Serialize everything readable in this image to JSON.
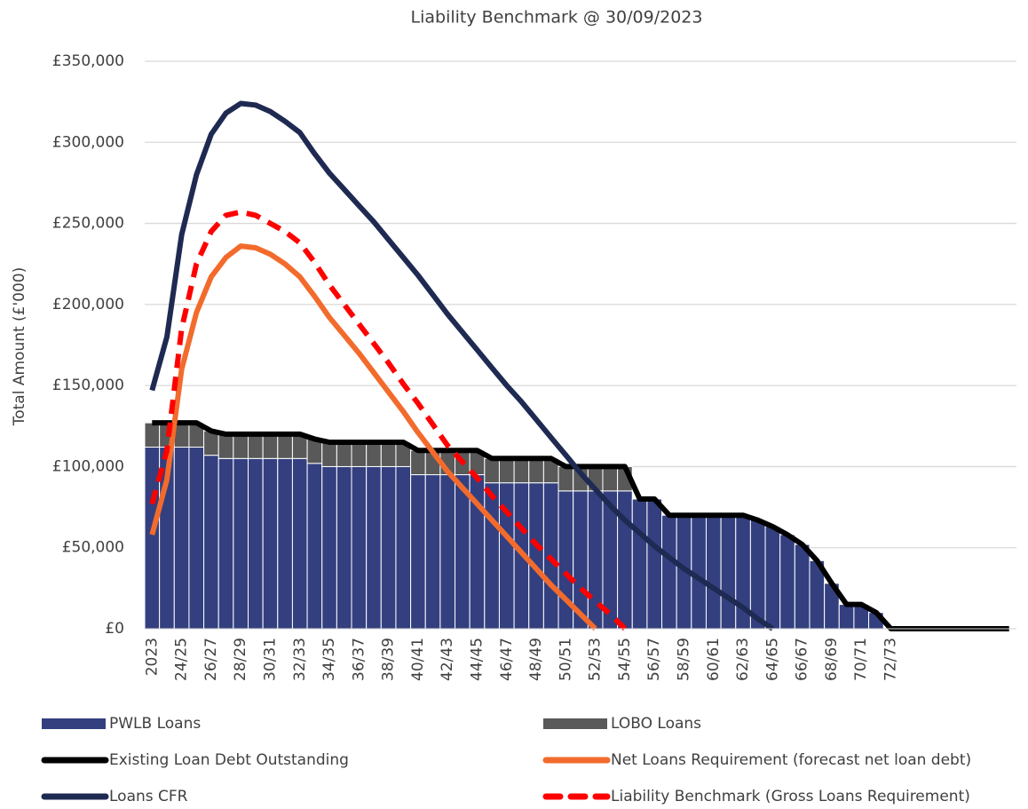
{
  "chart_data": {
    "type": "bar",
    "title": "Liability Benchmark @ 30/09/2023",
    "y_label": "Total Amount (£'000)",
    "categories": [
      "2023",
      null,
      "24/25",
      null,
      "26/27",
      null,
      "28/29",
      null,
      "30/31",
      null,
      "32/33",
      null,
      "34/35",
      null,
      "36/37",
      null,
      "38/39",
      null,
      "40/41",
      null,
      "42/43",
      null,
      "44/45",
      null,
      "46/47",
      null,
      "48/49",
      null,
      "50/51",
      null,
      "52/53",
      null,
      "54/55",
      null,
      "56/57",
      null,
      "58/59",
      null,
      "60/61",
      null,
      "62/63",
      null,
      "64/65",
      null,
      "66/67",
      null,
      "68/69",
      null,
      "70/71",
      null,
      "72/73",
      null,
      null,
      null,
      null,
      null,
      null,
      null,
      null
    ],
    "ylim": [
      0,
      350000
    ],
    "yticks": [
      {
        "value": 0,
        "label": "£0"
      },
      {
        "value": 50000,
        "label": "£50,000"
      },
      {
        "value": 100000,
        "label": "£100,000"
      },
      {
        "value": 150000,
        "label": "£150,000"
      },
      {
        "value": 200000,
        "label": "£200,000"
      },
      {
        "value": 250000,
        "label": "£250,000"
      },
      {
        "value": 300000,
        "label": "£300,000"
      },
      {
        "value": 350000,
        "label": "£350,000"
      }
    ],
    "grid": true,
    "series": [
      {
        "name": "PWLB Loans",
        "type": "bar",
        "color": "#333f7f",
        "values": [
          112000,
          112000,
          112000,
          112000,
          107000,
          105000,
          105000,
          105000,
          105000,
          105000,
          105000,
          102000,
          100000,
          100000,
          100000,
          100000,
          100000,
          100000,
          95000,
          95000,
          95000,
          95000,
          95000,
          90000,
          90000,
          90000,
          90000,
          90000,
          85000,
          85000,
          85000,
          85000,
          85000,
          80000,
          80000,
          70000,
          70000,
          70000,
          70000,
          70000,
          70000,
          67000,
          63000,
          58000,
          52000,
          42000,
          28000,
          15000,
          15000,
          10000,
          0,
          0,
          0,
          0,
          0,
          0,
          0,
          0,
          0
        ]
      },
      {
        "name": "LOBO Loans",
        "type": "bar",
        "color": "#595959",
        "values": [
          15000,
          15000,
          15000,
          15000,
          15000,
          15000,
          15000,
          15000,
          15000,
          15000,
          15000,
          15000,
          15000,
          15000,
          15000,
          15000,
          15000,
          15000,
          15000,
          15000,
          15000,
          15000,
          15000,
          15000,
          15000,
          15000,
          15000,
          15000,
          15000,
          15000,
          15000,
          15000,
          15000,
          0,
          0,
          0,
          0,
          0,
          0,
          0,
          0,
          0,
          0,
          0,
          0,
          0,
          0,
          0,
          0,
          0,
          0,
          0,
          0,
          0,
          0,
          0,
          0,
          0,
          0
        ]
      },
      {
        "name": "Existing Loan Debt Outstanding",
        "type": "line",
        "color": "#000000",
        "values": [
          127000,
          127000,
          127000,
          127000,
          122000,
          120000,
          120000,
          120000,
          120000,
          120000,
          120000,
          117000,
          115000,
          115000,
          115000,
          115000,
          115000,
          115000,
          110000,
          110000,
          110000,
          110000,
          110000,
          105000,
          105000,
          105000,
          105000,
          105000,
          100000,
          100000,
          100000,
          100000,
          100000,
          80000,
          80000,
          70000,
          70000,
          70000,
          70000,
          70000,
          70000,
          67000,
          63000,
          58000,
          52000,
          42000,
          28000,
          15000,
          15000,
          10000,
          0,
          0,
          0,
          0,
          0,
          0,
          0,
          0,
          0
        ]
      },
      {
        "name": "Net Loans Requirement (forecast net loan debt)",
        "type": "line",
        "color": "#f26b2d",
        "values": [
          58000,
          92000,
          160000,
          195000,
          217000,
          229000,
          236000,
          235000,
          231000,
          225000,
          217000,
          205000,
          192000,
          181000,
          170000,
          158000,
          146000,
          134000,
          121000,
          109000,
          97000,
          87000,
          77000,
          67000,
          57000,
          47000,
          37000,
          27000,
          18000,
          9000,
          0,
          null,
          null,
          null,
          null,
          null,
          null,
          null,
          null,
          null,
          null,
          null,
          null,
          null,
          null,
          null,
          null,
          null,
          null,
          null,
          null,
          null,
          null,
          null,
          null,
          null,
          null,
          null,
          null
        ]
      },
      {
        "name": "Loans CFR",
        "type": "line",
        "color": "#1f2a52",
        "values": [
          147000,
          180000,
          243000,
          280000,
          305000,
          318000,
          324000,
          323000,
          319000,
          313000,
          306000,
          293000,
          281000,
          271000,
          261000,
          251000,
          240000,
          229000,
          218000,
          206000,
          194000,
          183000,
          172000,
          161000,
          150000,
          140000,
          129000,
          118000,
          107000,
          96000,
          86000,
          76000,
          67000,
          59000,
          51000,
          44000,
          37000,
          31000,
          25000,
          19000,
          13000,
          6000,
          0,
          null,
          null,
          null,
          null,
          null,
          null,
          null,
          null,
          null,
          null,
          null,
          null,
          null,
          null,
          null,
          null
        ]
      },
      {
        "name": "Liability Benchmark (Gross Loans Requirement)",
        "type": "line",
        "color": "#ff0000",
        "dashed": true,
        "values": [
          77000,
          110000,
          185000,
          225000,
          245000,
          255000,
          257000,
          255000,
          250000,
          245000,
          238000,
          226000,
          212000,
          200000,
          188000,
          176000,
          164000,
          151000,
          139000,
          126000,
          113000,
          103000,
          93000,
          82000,
          72000,
          62000,
          52000,
          43000,
          34000,
          25000,
          17000,
          9000,
          0,
          null,
          null,
          null,
          null,
          null,
          null,
          null,
          null,
          null,
          null,
          null,
          null,
          null,
          null,
          null,
          null,
          null,
          null,
          null,
          null,
          null,
          null,
          null,
          null,
          null,
          null
        ]
      }
    ]
  }
}
